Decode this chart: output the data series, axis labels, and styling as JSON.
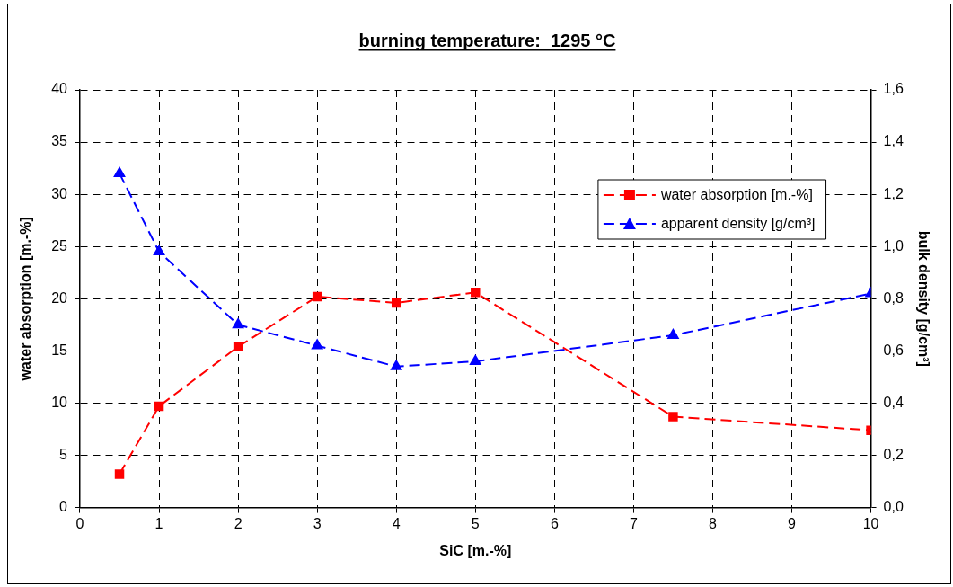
{
  "chart_data": {
    "type": "line",
    "title": "burning temperature:  1295 °C",
    "xlabel": "SiC [m.-%]",
    "ylabel": "water absorption [m.-%]",
    "y2label": "bulk density [g/cm³]",
    "x": [
      0.5,
      1,
      2,
      3,
      4,
      5,
      7.5,
      10
    ],
    "series": [
      {
        "name": "water absorption [m.-%]",
        "color": "#ff0000",
        "marker": "square",
        "line_style": "dashed",
        "values": [
          3.2,
          9.7,
          15.4,
          20.2,
          19.6,
          20.6,
          8.7,
          7.4
        ]
      },
      {
        "name": "apparent density [g/cm³]",
        "color": "#0000ff",
        "marker": "triangle",
        "line_style": "dashed",
        "axis": "y2",
        "values": [
          1.28,
          0.98,
          0.7,
          0.62,
          0.54,
          0.56,
          0.66,
          0.82
        ]
      }
    ],
    "xlim": [
      0,
      10
    ],
    "xticks": [
      0,
      1,
      2,
      3,
      4,
      5,
      6,
      7,
      8,
      9,
      10
    ],
    "ylim": [
      0,
      40
    ],
    "yticks": [
      0,
      5,
      10,
      15,
      20,
      25,
      30,
      35,
      40
    ],
    "y2lim": [
      0,
      1.6
    ],
    "y2ticks": [
      {
        "value": 0,
        "label": "0,0"
      },
      {
        "value": 0.2,
        "label": "0,2"
      },
      {
        "value": 0.4,
        "label": "0,4"
      },
      {
        "value": 0.6,
        "label": "0,6"
      },
      {
        "value": 0.8,
        "label": "0,8"
      },
      {
        "value": 1.0,
        "label": "1,0"
      },
      {
        "value": 1.2,
        "label": "1,2"
      },
      {
        "value": 1.4,
        "label": "1,4"
      },
      {
        "value": 1.6,
        "label": "1,6"
      }
    ],
    "grid": true,
    "legend": "top right"
  }
}
